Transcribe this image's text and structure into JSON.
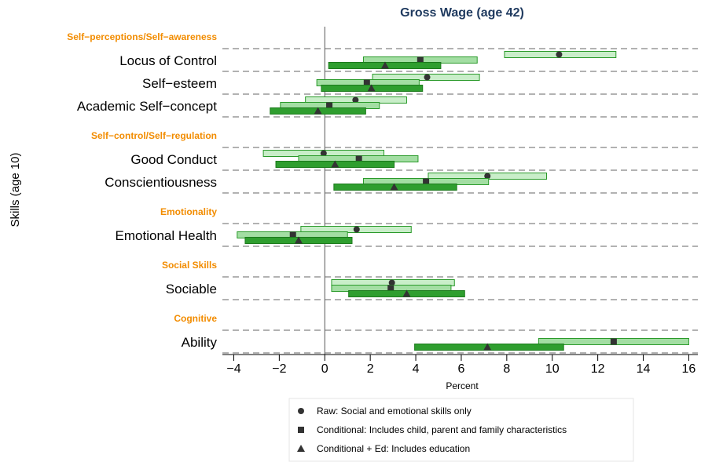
{
  "chart_data": {
    "type": "interval",
    "title": "Gross Wage (age 42)",
    "x_label": "Percent",
    "y_label": "Skills (age 10)",
    "xlim": [
      -4.5,
      16.4
    ],
    "xticks": [
      {
        "value": -4,
        "label": "−4"
      },
      {
        "value": -2,
        "label": "−2"
      },
      0,
      2,
      4,
      6,
      8,
      10,
      12,
      14,
      16
    ],
    "groups": [
      {
        "label": "Self−perceptions/Self−awareness",
        "categories": [
          "Locus of Control",
          "Self−esteem",
          "Academic Self−concept"
        ]
      },
      {
        "label": "Self−control/Self−regulation",
        "categories": [
          "Good Conduct",
          "Conscientiousness"
        ]
      },
      {
        "label": "Emotionality",
        "categories": [
          "Emotional Health"
        ]
      },
      {
        "label": "Social Skills",
        "categories": [
          "Sociable"
        ]
      },
      {
        "label": "Cognitive",
        "categories": [
          "Ability"
        ]
      }
    ],
    "series": [
      {
        "name": "Raw: Social and emotional skills only",
        "marker": "circle",
        "color": "#c9eec9",
        "values": [
          10.3,
          4.5,
          1.35,
          -0.05,
          7.15,
          1.4,
          2.95,
          null
        ],
        "lower": [
          7.9,
          2.1,
          -0.85,
          -2.7,
          4.55,
          -1.05,
          0.3,
          null
        ],
        "upper": [
          12.8,
          6.8,
          3.6,
          2.6,
          9.75,
          3.8,
          5.7,
          null
        ]
      },
      {
        "name": "Conditional: Includes child, parent and family characteristics",
        "marker": "square",
        "color": "#a3dea3",
        "values": [
          4.2,
          1.85,
          0.2,
          1.5,
          4.45,
          -1.4,
          2.9,
          12.7
        ],
        "lower": [
          1.7,
          -0.35,
          -1.95,
          -1.15,
          1.7,
          -3.85,
          0.3,
          9.4
        ],
        "upper": [
          6.7,
          4.15,
          2.4,
          4.1,
          7.2,
          1.0,
          5.55,
          16.0
        ]
      },
      {
        "name": "Conditional + Ed: Includes education",
        "marker": "triangle",
        "color": "#2f9e2f",
        "values": [
          2.65,
          2.05,
          -0.3,
          0.45,
          3.05,
          -1.15,
          3.6,
          7.15
        ],
        "lower": [
          0.17,
          -0.15,
          -2.4,
          -2.15,
          0.4,
          -3.5,
          1.05,
          3.95
        ],
        "upper": [
          5.1,
          4.3,
          1.8,
          3.05,
          5.8,
          1.2,
          6.15,
          10.5
        ]
      }
    ]
  }
}
